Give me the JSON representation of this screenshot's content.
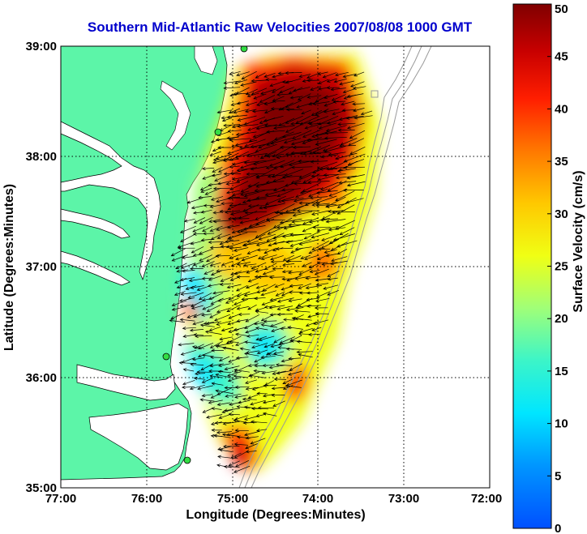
{
  "map": {
    "title": "Southern Mid-Atlantic Raw Velocities 2007/08/08 1000 GMT",
    "title_color": "#0000cc",
    "xlabel": "Longitude (Degrees:Minutes)",
    "ylabel": "Latitude (Degrees:Minutes)",
    "x_range": [
      -77,
      -72
    ],
    "y_range": [
      35,
      39
    ],
    "x_ticks": [
      {
        "value": -77,
        "label": "77:00"
      },
      {
        "value": -76,
        "label": "76:00"
      },
      {
        "value": -75,
        "label": "75:00"
      },
      {
        "value": -74,
        "label": "74:00"
      },
      {
        "value": -73,
        "label": "73:00"
      },
      {
        "value": -72,
        "label": "72:00"
      }
    ],
    "y_ticks": [
      {
        "value": 39,
        "label": "39:00"
      },
      {
        "value": 38,
        "label": "38:00"
      },
      {
        "value": 37,
        "label": "37:00"
      },
      {
        "value": 36,
        "label": "36:00"
      },
      {
        "value": 35,
        "label": "35:00"
      }
    ],
    "grid": "dotted",
    "land_color": "#5cf5a8",
    "station_color": "#33dd44"
  },
  "colorbar": {
    "label": "Surface Velocity (cm/s)",
    "range": [
      0,
      50
    ],
    "ticks": [
      {
        "value": 50,
        "label": "50"
      },
      {
        "value": 45,
        "label": "45"
      },
      {
        "value": 40,
        "label": "40"
      },
      {
        "value": 35,
        "label": "35"
      },
      {
        "value": 30,
        "label": "30"
      },
      {
        "value": 25,
        "label": "25"
      },
      {
        "value": 20,
        "label": "20"
      },
      {
        "value": 15,
        "label": "15"
      },
      {
        "value": 10,
        "label": "10"
      },
      {
        "value": 5,
        "label": "5"
      },
      {
        "value": 0,
        "label": "0"
      }
    ]
  }
}
